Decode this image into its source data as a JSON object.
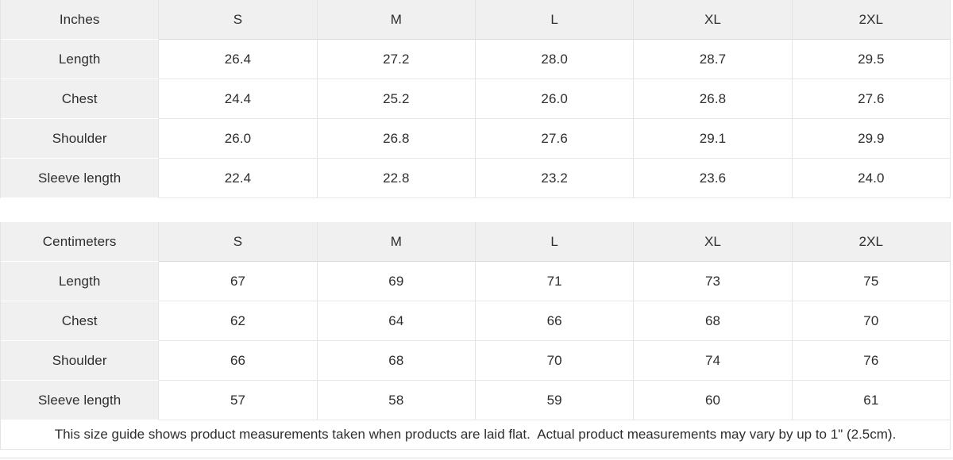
{
  "colors": {
    "header_bg": "#f0f0f0",
    "cell_bg": "#ffffff",
    "border": "#e4e4e4",
    "header_divider": "#d9d9d9",
    "text": "#2e2e2e"
  },
  "tables": [
    {
      "unit_label": "Inches",
      "columns": [
        "S",
        "M",
        "L",
        "XL",
        "2XL"
      ],
      "rows": [
        {
          "label": "Length",
          "values": [
            "26.4",
            "27.2",
            "28.0",
            "28.7",
            "29.5"
          ]
        },
        {
          "label": "Chest",
          "values": [
            "24.4",
            "25.2",
            "26.0",
            "26.8",
            "27.6"
          ]
        },
        {
          "label": "Shoulder",
          "values": [
            "26.0",
            "26.8",
            "27.6",
            "29.1",
            "29.9"
          ]
        },
        {
          "label": "Sleeve length",
          "values": [
            "22.4",
            "22.8",
            "23.2",
            "23.6",
            "24.0"
          ]
        }
      ]
    },
    {
      "unit_label": "Centimeters",
      "columns": [
        "S",
        "M",
        "L",
        "XL",
        "2XL"
      ],
      "rows": [
        {
          "label": "Length",
          "values": [
            "67",
            "69",
            "71",
            "73",
            "75"
          ]
        },
        {
          "label": "Chest",
          "values": [
            "62",
            "64",
            "66",
            "68",
            "70"
          ]
        },
        {
          "label": "Shoulder",
          "values": [
            "66",
            "68",
            "70",
            "74",
            "76"
          ]
        },
        {
          "label": "Sleeve length",
          "values": [
            "57",
            "58",
            "59",
            "60",
            "61"
          ]
        }
      ]
    }
  ],
  "footer": {
    "note": "This size guide shows product measurements taken when products are laid flat.  Actual product measurements may vary by up to 1\" (2.5cm)."
  }
}
